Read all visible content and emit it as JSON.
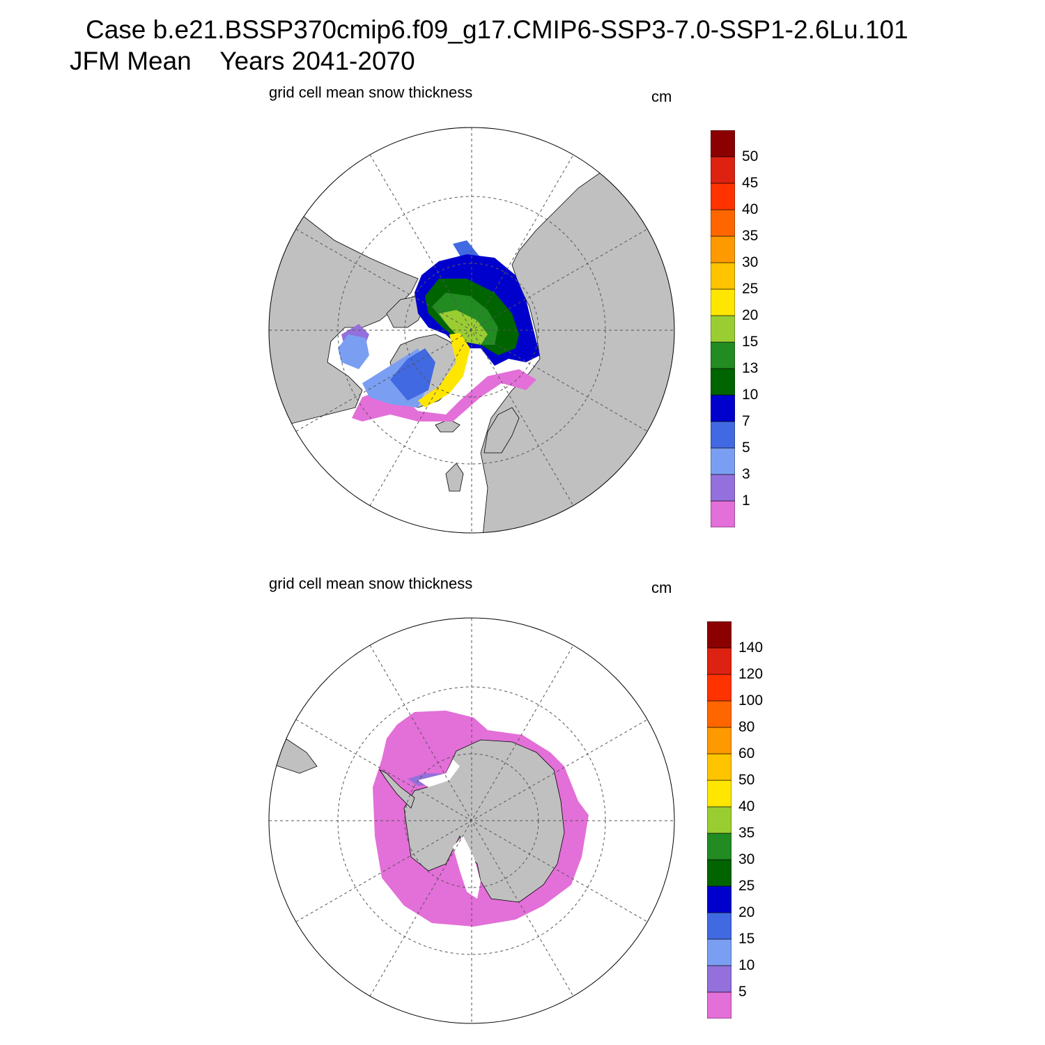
{
  "header": {
    "line1": "Case b.e21.BSSP370cmip6.f09_g17.CMIP6-SSP3-7.0-SSP1-2.6Lu.101",
    "line2": "JFM Mean    Years 2041-2070"
  },
  "colors": {
    "land": "#c0c0c0",
    "ocean": "#ffffff",
    "grid": "#555555",
    "palette": [
      "#e36fd8",
      "#9370db",
      "#7a9ff2",
      "#4169e1",
      "#0000cd",
      "#006400",
      "#228b22",
      "#9acd32",
      "#ffe600",
      "#ffc400",
      "#ff9900",
      "#ff6600",
      "#ff3300",
      "#dd2211",
      "#8b0000"
    ]
  },
  "panels": [
    {
      "id": "arctic",
      "label": "grid cell mean snow thickness",
      "units": "cm",
      "colorbar_labels": [
        "50",
        "45",
        "40",
        "35",
        "30",
        "25",
        "20",
        "15",
        "13",
        "10",
        "7",
        "5",
        "3",
        "1"
      ]
    },
    {
      "id": "antarctic",
      "label": "grid cell mean snow thickness",
      "units": "cm",
      "colorbar_labels": [
        "140",
        "120",
        "100",
        "80",
        "60",
        "50",
        "40",
        "35",
        "30",
        "25",
        "20",
        "15",
        "10",
        "5"
      ]
    }
  ]
}
